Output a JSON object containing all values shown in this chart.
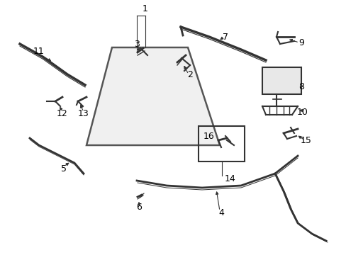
{
  "bg_color": "#ffffff",
  "fig_width": 4.89,
  "fig_height": 3.6,
  "dpi": 100,
  "line_color": "#333333",
  "label_fontsize": 9
}
